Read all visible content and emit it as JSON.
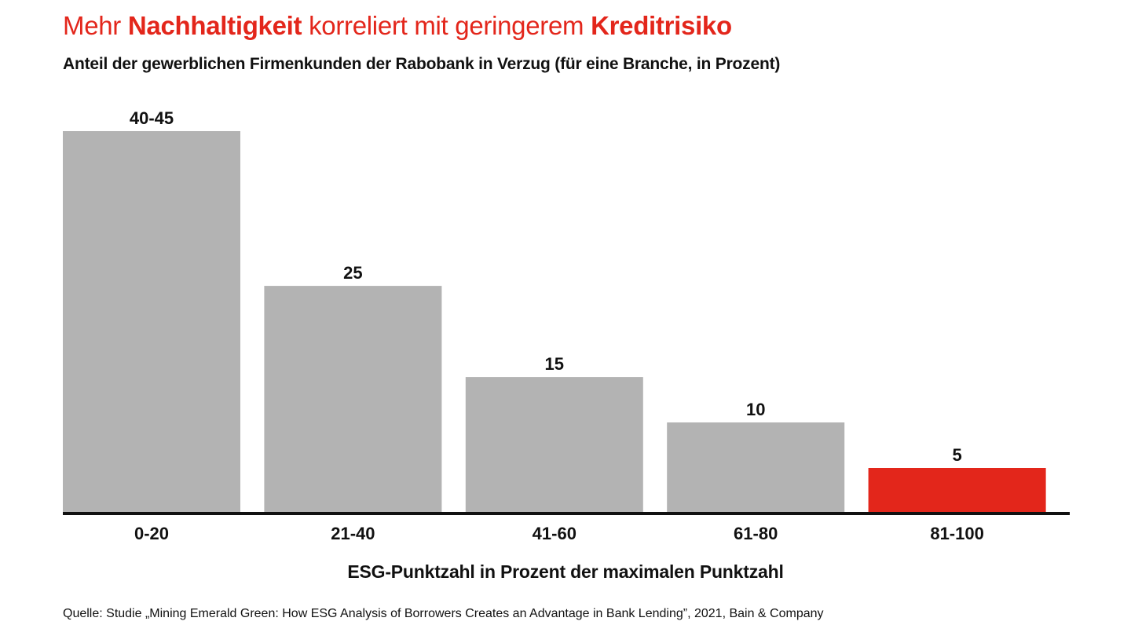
{
  "header": {
    "title_parts": [
      "Mehr ",
      "Nachhaltigkeit",
      " korreliert mit geringerem ",
      "Kreditrisiko"
    ],
    "subtitle": "Anteil der gewerblichen Firmenkunden der Rabobank in Verzug (für eine Branche, in Prozent)"
  },
  "chart_data": {
    "type": "bar",
    "title": "Mehr Nachhaltigkeit korreliert mit geringerem Kreditrisiko",
    "subtitle": "Anteil der gewerblichen Firmenkunden der Rabobank in Verzug (für eine Branche, in Prozent)",
    "categories": [
      "0-20",
      "21-40",
      "41-60",
      "61-80",
      "81-100"
    ],
    "values": [
      42,
      25,
      15,
      10,
      5
    ],
    "value_labels": [
      "40-45",
      "25",
      "15",
      "10",
      "5"
    ],
    "xlabel": "ESG-Punktzahl in Prozent der maximalen Punktzahl",
    "ylabel": "",
    "ylim": [
      0,
      42
    ],
    "grid": false,
    "legend": "none",
    "colors": {
      "default": "#b3b3b3",
      "highlight": "#e3261b",
      "highlight_category": "81-100",
      "axis": "#111111"
    }
  },
  "source": "Quelle: Studie „Mining Emerald Green: How ESG Analysis of Borrowers Creates an Advantage in Bank Lending”, 2021, Bain & Company"
}
